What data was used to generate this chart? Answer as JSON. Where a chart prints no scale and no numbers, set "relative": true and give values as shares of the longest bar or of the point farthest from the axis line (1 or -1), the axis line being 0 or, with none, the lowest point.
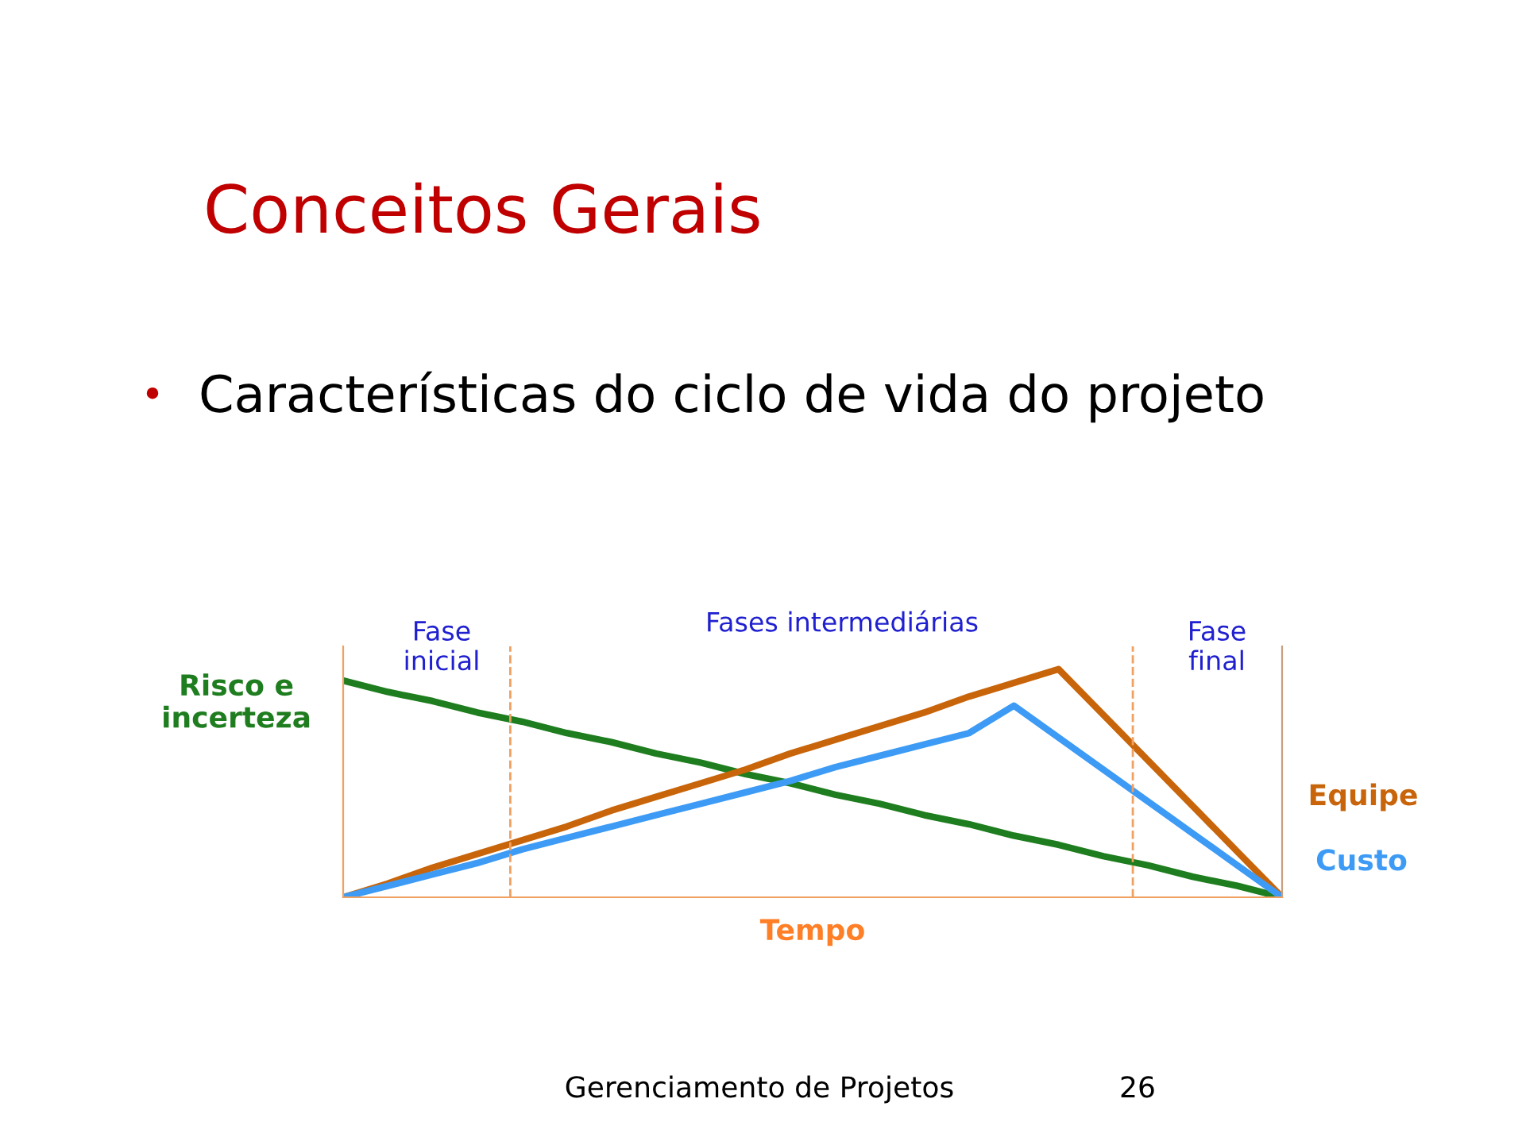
{
  "chart_data": {
    "type": "line",
    "title": "Conceitos Gerais",
    "subtitle": "Características do ciclo de vida do projeto",
    "xlabel": "Tempo",
    "relative": true,
    "line_style": "solid",
    "categories": [
      null,
      null,
      null,
      null,
      null,
      null,
      null,
      null,
      null,
      null,
      null,
      null,
      null,
      null,
      null,
      null,
      null,
      null,
      null,
      null,
      null,
      null
    ],
    "series": [
      {
        "name": "Risco e\nincerteza",
        "color": "#1e7d1e",
        "values": [
          0.95,
          0.9,
          0.86,
          0.81,
          0.77,
          0.72,
          0.68,
          0.63,
          0.59,
          0.54,
          0.5,
          0.45,
          0.41,
          0.36,
          0.32,
          0.27,
          0.23,
          0.18,
          0.14,
          0.09,
          0.05,
          0
        ]
      },
      {
        "name": "Equipe",
        "color": "#c8650a",
        "values": [
          0,
          0.06,
          0.13,
          0.19,
          0.25,
          0.31,
          0.38,
          0.44,
          0.5,
          0.56,
          0.63,
          0.69,
          0.75,
          0.81,
          0.88,
          0.94,
          1,
          0.8,
          0.6,
          0.4,
          0.2,
          0
        ]
      },
      {
        "name": "Custo",
        "color": "#3d9bf5",
        "values": [
          0,
          0.05,
          0.1,
          0.15,
          0.21,
          0.26,
          0.31,
          0.36,
          0.41,
          0.46,
          0.51,
          0.57,
          0.62,
          0.67,
          0.72,
          0.84,
          0.7,
          0.56,
          0.42,
          0.28,
          0.14,
          0
        ]
      }
    ],
    "annotations": [
      "Fase\ninicial",
      "Fases intermediárias",
      "Fase\nfinal",
      "Gerenciamento de Projetos",
      "26",
      "•"
    ]
  }
}
